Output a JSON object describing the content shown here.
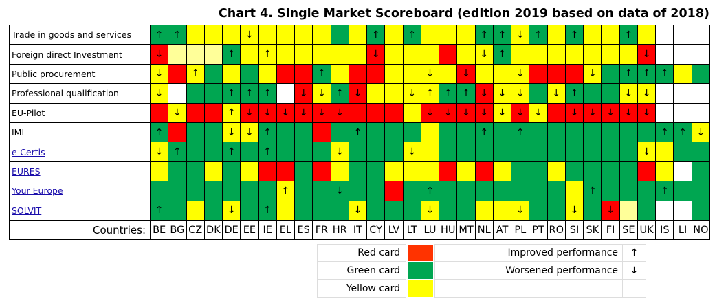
{
  "table": {
    "title": "Chart 4. Single Market Scoreboard (edition 2019 based on data of 2018)",
    "countries_label": "Countries:",
    "countries": [
      "BE",
      "BG",
      "CZ",
      "DK",
      "DE",
      "EE",
      "IE",
      "EL",
      "ES",
      "FR",
      "HR",
      "IT",
      "CY",
      "LV",
      "LT",
      "LU",
      "HU",
      "MT",
      "NL",
      "AT",
      "PL",
      "PT",
      "RO",
      "SI",
      "SK",
      "FI",
      "SE",
      "UK",
      "IS",
      "LI",
      "NO"
    ],
    "rows": [
      {
        "label": "Trade in goods and services",
        "link": false,
        "colors": [
          "#00a651",
          "#00a651",
          "#ffff00",
          "#ffff00",
          "#ffff00",
          "#ffff00",
          "#ffff00",
          "#ffff00",
          "#ffff00",
          "#ffff00",
          "#00a651",
          "#ffff00",
          "#00a651",
          "#ffff00",
          "#00a651",
          "#ffff00",
          "#ffff00",
          "#ffff00",
          "#00a651",
          "#00a651",
          "#ffff00",
          "#00a651",
          "#ffff00",
          "#00a651",
          "#ffff00",
          "#ffff00",
          "#00a651",
          "#ffff00",
          "#ffffff",
          "#ffffff",
          "#ffffff"
        ],
        "marks": [
          "↑",
          "↑",
          null,
          null,
          null,
          "↓",
          null,
          null,
          null,
          null,
          null,
          null,
          "↑",
          null,
          "↑",
          null,
          null,
          null,
          "↑",
          "↑",
          "↓",
          "↑",
          null,
          "↑",
          null,
          null,
          "↑",
          null,
          null,
          null,
          null
        ]
      },
      {
        "label": "Foreign direct Investment",
        "link": false,
        "colors": [
          "#ff0000",
          "#ffff99",
          "#ffff99",
          "#ffff99",
          "#00a651",
          "#ffff00",
          "#ffff00",
          "#ffff00",
          "#ffff00",
          "#ffff00",
          "#ffff00",
          "#ffff00",
          "#ff0000",
          "#ffff00",
          "#ffff00",
          "#ffff00",
          "#ff0000",
          "#ffff00",
          "#ffff00",
          "#00a651",
          "#ffff00",
          "#ffff00",
          "#ffff00",
          "#ffff00",
          "#ffff00",
          "#ffff00",
          "#ffff00",
          "#ff0000",
          "#ffffff",
          "#ffffff",
          "#ffffff"
        ],
        "marks": [
          "↓",
          null,
          null,
          null,
          "↑",
          null,
          "↑",
          null,
          null,
          null,
          null,
          null,
          "↓",
          null,
          null,
          null,
          null,
          null,
          "↓",
          "↑",
          null,
          null,
          null,
          null,
          null,
          null,
          null,
          "↓",
          null,
          null,
          null
        ]
      },
      {
        "label": "Public procurement",
        "link": false,
        "colors": [
          "#ffff00",
          "#ff0000",
          "#ffff00",
          "#00a651",
          "#ffff00",
          "#00a651",
          "#ffff00",
          "#ff0000",
          "#ff0000",
          "#00a651",
          "#ffff00",
          "#ff0000",
          "#ff0000",
          "#ffff00",
          "#ffff00",
          "#ffff00",
          "#ffff00",
          "#ff0000",
          "#ffff00",
          "#ffff00",
          "#ffff00",
          "#ff0000",
          "#ff0000",
          "#ff0000",
          "#ffff00",
          "#00a651",
          "#00a651",
          "#00a651",
          "#00a651",
          "#ffff00",
          "#00a651"
        ],
        "marks": [
          "↓",
          null,
          "↑",
          null,
          null,
          null,
          null,
          null,
          null,
          "↑",
          null,
          null,
          null,
          null,
          null,
          "↓",
          null,
          "↓",
          null,
          null,
          "↓",
          null,
          null,
          null,
          "↓",
          null,
          "↑",
          "↑",
          "↑",
          null,
          null
        ]
      },
      {
        "label": "Professional qualification",
        "link": false,
        "colors": [
          "#ffff00",
          "#ffffff",
          "#00a651",
          "#00a651",
          "#00a651",
          "#00a651",
          "#00a651",
          "#ffffff",
          "#ff0000",
          "#ffff00",
          "#00a651",
          "#ff0000",
          "#ffff00",
          "#ffff00",
          "#ffff00",
          "#ffff00",
          "#00a651",
          "#00a651",
          "#ff0000",
          "#ffff00",
          "#ffff00",
          "#00a651",
          "#ffff00",
          "#00a651",
          "#00a651",
          "#00a651",
          "#ffff00",
          "#ffff00",
          "#ffffff",
          "#ffffff",
          "#ffffff"
        ],
        "marks": [
          "↓",
          null,
          null,
          null,
          "↑",
          "↑",
          "↑",
          null,
          "↓",
          "↓",
          "↑",
          "↓",
          null,
          null,
          "↓",
          "↑",
          "↑",
          "↑",
          "↓",
          "↓",
          "↓",
          null,
          "↓",
          "↑",
          null,
          null,
          "↓",
          "↓",
          null,
          null,
          null
        ]
      },
      {
        "label": "EU-Pilot",
        "link": false,
        "colors": [
          "#ff0000",
          "#ffff00",
          "#ff0000",
          "#ff0000",
          "#ffff00",
          "#ff0000",
          "#ff0000",
          "#ff0000",
          "#ff0000",
          "#ff0000",
          "#ff0000",
          "#ff0000",
          "#ff0000",
          "#ff0000",
          "#ffff00",
          "#ff0000",
          "#ff0000",
          "#ff0000",
          "#ff0000",
          "#ffff00",
          "#ff0000",
          "#ffff00",
          "#ff0000",
          "#ff0000",
          "#ff0000",
          "#ff0000",
          "#ff0000",
          "#ff0000",
          "#ffffff",
          "#ffffff",
          "#ffffff"
        ],
        "marks": [
          null,
          "↓",
          null,
          null,
          "↑",
          "↓",
          "↓",
          "↓",
          "↓",
          "↓",
          "↓",
          null,
          null,
          null,
          null,
          "↓",
          "↓",
          "↓",
          "↓",
          "↓",
          "↓",
          "↓",
          null,
          "↓",
          "↓",
          "↓",
          "↓",
          "↓",
          null,
          null,
          null
        ]
      },
      {
        "label": "IMI",
        "link": false,
        "colors": [
          "#00a651",
          "#ff0000",
          "#00a651",
          "#00a651",
          "#ffff00",
          "#ffff00",
          "#00a651",
          "#00a651",
          "#00a651",
          "#ff0000",
          "#00a651",
          "#00a651",
          "#00a651",
          "#00a651",
          "#00a651",
          "#ffff00",
          "#00a651",
          "#00a651",
          "#00a651",
          "#00a651",
          "#00a651",
          "#00a651",
          "#00a651",
          "#00a651",
          "#00a651",
          "#00a651",
          "#00a651",
          "#00a651",
          "#00a651",
          "#00a651",
          "#ffff00"
        ],
        "marks": [
          "↑",
          null,
          null,
          null,
          "↓",
          "↓",
          "↑",
          null,
          null,
          null,
          null,
          "↑",
          null,
          null,
          null,
          null,
          null,
          null,
          "↑",
          null,
          "↑",
          null,
          null,
          null,
          null,
          null,
          null,
          null,
          "↑",
          "↑",
          "↓"
        ]
      },
      {
        "label": "e-Certis",
        "link": true,
        "colors": [
          "#ffff00",
          "#00a651",
          "#00a651",
          "#00a651",
          "#00a651",
          "#00a651",
          "#00a651",
          "#00a651",
          "#00a651",
          "#00a651",
          "#ffff00",
          "#00a651",
          "#00a651",
          "#00a651",
          "#ffff00",
          "#ffff00",
          "#00a651",
          "#00a651",
          "#00a651",
          "#00a651",
          "#00a651",
          "#00a651",
          "#00a651",
          "#00a651",
          "#00a651",
          "#00a651",
          "#00a651",
          "#ffff00",
          "#ffff00",
          "#00a651",
          "#00a651"
        ],
        "marks": [
          "↓",
          "↑",
          null,
          null,
          "↑",
          null,
          "↑",
          null,
          null,
          null,
          "↓",
          null,
          null,
          null,
          "↓",
          null,
          null,
          null,
          null,
          null,
          null,
          null,
          null,
          null,
          null,
          null,
          null,
          "↓",
          null,
          null,
          null
        ]
      },
      {
        "label": "EURES",
        "link": true,
        "colors": [
          "#ffff00",
          "#00a651",
          "#00a651",
          "#ffff00",
          "#00a651",
          "#ffff00",
          "#ff0000",
          "#ff0000",
          "#00a651",
          "#ff0000",
          "#ffff00",
          "#00a651",
          "#00a651",
          "#ffff00",
          "#ffff00",
          "#ffff00",
          "#ff0000",
          "#ffff00",
          "#ff0000",
          "#ffff00",
          "#00a651",
          "#00a651",
          "#ffff00",
          "#00a651",
          "#00a651",
          "#00a651",
          "#00a651",
          "#ff0000",
          "#ffff00",
          "#ffffff",
          "#00a651"
        ],
        "marks": [
          null,
          null,
          null,
          null,
          null,
          null,
          null,
          null,
          null,
          null,
          null,
          null,
          null,
          null,
          null,
          null,
          null,
          null,
          null,
          null,
          null,
          null,
          null,
          null,
          null,
          null,
          null,
          null,
          null,
          null,
          null
        ]
      },
      {
        "label": "Your Europe",
        "link": true,
        "colors": [
          "#00a651",
          "#00a651",
          "#00a651",
          "#00a651",
          "#00a651",
          "#00a651",
          "#00a651",
          "#ffff00",
          "#00a651",
          "#00a651",
          "#00a651",
          "#00a651",
          "#00a651",
          "#ff0000",
          "#00a651",
          "#00a651",
          "#00a651",
          "#00a651",
          "#00a651",
          "#00a651",
          "#00a651",
          "#00a651",
          "#00a651",
          "#ffff00",
          "#00a651",
          "#00a651",
          "#00a651",
          "#00a651",
          "#00a651",
          "#00a651",
          "#00a651"
        ],
        "marks": [
          null,
          null,
          null,
          null,
          null,
          null,
          null,
          "↑",
          null,
          null,
          "↓",
          null,
          null,
          null,
          null,
          "↑",
          null,
          null,
          null,
          null,
          null,
          null,
          null,
          null,
          "↑",
          null,
          null,
          null,
          "↑",
          null,
          null
        ]
      },
      {
        "label": "SOLVIT",
        "link": true,
        "colors": [
          "#00a651",
          "#00a651",
          "#ffff00",
          "#00a651",
          "#ffff00",
          "#00a651",
          "#00a651",
          "#ffff00",
          "#00a651",
          "#00a651",
          "#00a651",
          "#ffff00",
          "#00a651",
          "#00a651",
          "#00a651",
          "#ffff00",
          "#00a651",
          "#00a651",
          "#ffff00",
          "#ffff00",
          "#ffff00",
          "#00a651",
          "#00a651",
          "#ffff00",
          "#00a651",
          "#ff0000",
          "#ffff99",
          "#00a651",
          "#ffffff",
          "#ffffff",
          "#00a651"
        ],
        "marks": [
          "↑",
          null,
          null,
          null,
          "↓",
          null,
          "↑",
          null,
          null,
          null,
          null,
          "↓",
          null,
          null,
          null,
          "↓",
          null,
          null,
          null,
          null,
          "↓",
          null,
          null,
          "↓",
          null,
          "↓",
          null,
          null,
          null,
          null,
          null
        ]
      }
    ]
  },
  "legend": {
    "cards": [
      {
        "label": "Red card",
        "color": "#ff3300"
      },
      {
        "label": "Green card",
        "color": "#00a651"
      },
      {
        "label": "Yellow card",
        "color": "#ffff00"
      }
    ],
    "arrows": [
      {
        "label": "Improved performance",
        "symbol": "↑"
      },
      {
        "label": "Worsened performance",
        "symbol": "↓"
      }
    ]
  }
}
